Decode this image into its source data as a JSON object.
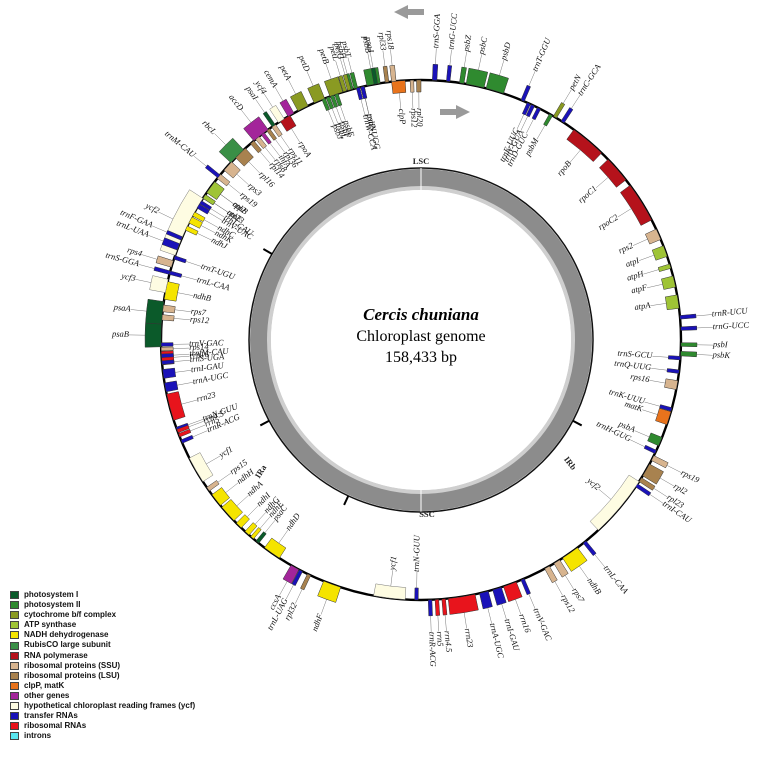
{
  "title": {
    "species": "Cercis chuniana",
    "subtitle": "Chloroplast genome",
    "size": "158,433 bp"
  },
  "regions": {
    "lsc": "LSC",
    "irb": "IRb",
    "ssc": "SSC",
    "ira": "IRa"
  },
  "colors": {
    "photosystem_i": "#0b5a2a",
    "photosystem_ii": "#2f8a2f",
    "cytochrome": "#8a9a22",
    "atp": "#9fc436",
    "ndh": "#f5e400",
    "rubisco": "#3a8f46",
    "rna_pol": "#b5121b",
    "rps": "#d7b48f",
    "rpl": "#a8824f",
    "clp": "#e8731c",
    "other": "#a3259a",
    "ycf": "#fefce2",
    "trna": "#1a12b8",
    "rrna": "#e8141c",
    "intron": "#5ae6ef"
  },
  "legend": [
    {
      "label": "photosystem I",
      "key": "photosystem_i"
    },
    {
      "label": "photosystem II",
      "key": "photosystem_ii"
    },
    {
      "label": "cytochrome b/f complex",
      "key": "cytochrome"
    },
    {
      "label": "ATP synthase",
      "key": "atp"
    },
    {
      "label": "NADH dehydrogenase",
      "key": "ndh"
    },
    {
      "label": "RubisCO large subunit",
      "key": "rubisco"
    },
    {
      "label": "RNA polymerase",
      "key": "rna_pol"
    },
    {
      "label": "ribosomal proteins (SSU)",
      "key": "rps"
    },
    {
      "label": "ribosomal proteins (LSU)",
      "key": "rpl"
    },
    {
      "label": "clpP, matK",
      "key": "clp"
    },
    {
      "label": "other genes",
      "key": "other"
    },
    {
      "label": "hypothetical chloroplast reading frames (ycf)",
      "key": "ycf"
    },
    {
      "label": "transfer RNAs",
      "key": "trna"
    },
    {
      "label": "ribosomal RNAs",
      "key": "rrna"
    },
    {
      "label": "introns",
      "key": "intron"
    }
  ],
  "genes": [
    {
      "name": "trnS-GGA",
      "a": 3,
      "w": 1,
      "t": "trna",
      "s": "out"
    },
    {
      "name": "trnG-UCC",
      "a": 6,
      "w": 0.8,
      "t": "trna",
      "s": "out"
    },
    {
      "name": "psbZ",
      "a": 9,
      "w": 1,
      "t": "photosystem_ii",
      "s": "out"
    },
    {
      "name": "psbC",
      "a": 12,
      "w": 4,
      "t": "photosystem_ii",
      "s": "out"
    },
    {
      "name": "psbD",
      "a": 16.5,
      "w": 4,
      "t": "photosystem_ii",
      "s": "out"
    },
    {
      "name": "trnT-GGU",
      "a": 23,
      "w": 0.8,
      "t": "trna",
      "s": "out"
    },
    {
      "name": "psbM",
      "a": 30,
      "w": 0.8,
      "t": "photosystem_ii",
      "s": "in"
    },
    {
      "name": "petN",
      "a": 31,
      "w": 0.8,
      "t": "cytochrome",
      "s": "out"
    },
    {
      "name": "trnD-GUC",
      "a": 27,
      "w": 0.8,
      "t": "trna",
      "s": "in"
    },
    {
      "name": "trnY-GUA",
      "a": 25.5,
      "w": 0.8,
      "t": "trna",
      "s": "in"
    },
    {
      "name": "trnE-UUC",
      "a": 24.5,
      "w": 0.8,
      "t": "trna",
      "s": "in"
    },
    {
      "name": "trnC-GCA",
      "a": 33,
      "w": 0.8,
      "t": "trna",
      "s": "out"
    },
    {
      "name": "rpoB",
      "a": 40,
      "w": 8,
      "t": "rna_pol",
      "s": "in"
    },
    {
      "name": "rpoC1",
      "a": 49,
      "w": 6,
      "t": "rna_pol",
      "s": "in"
    },
    {
      "name": "rpoC2",
      "a": 58,
      "w": 9,
      "t": "rna_pol",
      "s": "in"
    },
    {
      "name": "rps2",
      "a": 66,
      "w": 2.5,
      "t": "rps",
      "s": "in"
    },
    {
      "name": "atpI",
      "a": 70,
      "w": 2.5,
      "t": "atp",
      "s": "in"
    },
    {
      "name": "atpH",
      "a": 73.5,
      "w": 1,
      "t": "atp",
      "s": "in"
    },
    {
      "name": "atpF",
      "a": 77,
      "w": 2.5,
      "t": "atp",
      "s": "in"
    },
    {
      "name": "atpA",
      "a": 81.5,
      "w": 3,
      "t": "atp",
      "s": "in"
    },
    {
      "name": "trnR-UCU",
      "a": 85,
      "w": 0.8,
      "t": "trna",
      "s": "out"
    },
    {
      "name": "trnG-UCC",
      "a": 87.5,
      "w": 0.8,
      "t": "trna",
      "s": "out"
    },
    {
      "name": "psbI",
      "a": 91,
      "w": 0.8,
      "t": "photosystem_ii",
      "s": "out"
    },
    {
      "name": "psbK",
      "a": 93,
      "w": 1,
      "t": "photosystem_ii",
      "s": "out"
    },
    {
      "name": "trnS-GCU",
      "a": 94,
      "w": 0.8,
      "t": "trna",
      "s": "in"
    },
    {
      "name": "trnQ-UUG",
      "a": 97,
      "w": 0.8,
      "t": "trna",
      "s": "in"
    },
    {
      "name": "rps16",
      "a": 100,
      "w": 2,
      "t": "rps",
      "s": "in"
    },
    {
      "name": "trnK-UUU",
      "a": 105.5,
      "w": 0.8,
      "t": "trna",
      "s": "in"
    },
    {
      "name": "matK",
      "a": 107.5,
      "w": 3,
      "t": "clp",
      "s": "in"
    },
    {
      "name": "psbA",
      "a": 113,
      "w": 2,
      "t": "photosystem_ii",
      "s": "in"
    },
    {
      "name": "trnH-GUG",
      "a": 115.5,
      "w": 0.8,
      "t": "trna",
      "s": "in"
    },
    {
      "name": "rps19",
      "a": 117,
      "w": 1.2,
      "t": "rps",
      "s": "out"
    },
    {
      "name": "rpl2",
      "a": 120,
      "w": 3,
      "t": "rpl",
      "s": "out"
    },
    {
      "name": "rpl23",
      "a": 122.5,
      "w": 1,
      "t": "rpl",
      "s": "out"
    },
    {
      "name": "trnI-CAU",
      "a": 124,
      "w": 0.8,
      "t": "trna",
      "s": "out"
    },
    {
      "name": "ycf2",
      "a": 130,
      "w": 14,
      "t": "ycf",
      "s": "in"
    },
    {
      "name": "trnL-CAA",
      "a": 141,
      "w": 0.8,
      "t": "trna",
      "s": "out"
    },
    {
      "name": "ndhB",
      "a": 145,
      "w": 4,
      "t": "ndh",
      "s": "out"
    },
    {
      "name": "rps7",
      "a": 148.5,
      "w": 1.5,
      "t": "rps",
      "s": "out"
    },
    {
      "name": "rps12",
      "a": 151,
      "w": 1.2,
      "t": "rps",
      "s": "out"
    },
    {
      "name": "trnV-GAC",
      "a": 157,
      "w": 0.8,
      "t": "trna",
      "s": "out"
    },
    {
      "name": "rrn16",
      "a": 160,
      "w": 3,
      "t": "rrna",
      "s": "out"
    },
    {
      "name": "trnI-GAU",
      "a": 163,
      "w": 2,
      "t": "trna",
      "s": "out"
    },
    {
      "name": "trnA-UGC",
      "a": 166,
      "w": 2,
      "t": "trna",
      "s": "out"
    },
    {
      "name": "rrn23",
      "a": 171,
      "w": 6,
      "t": "rrna",
      "s": "out"
    },
    {
      "name": "rrn4.5",
      "a": 175,
      "w": 0.8,
      "t": "rrna",
      "s": "out"
    },
    {
      "name": "rrn5",
      "a": 176.5,
      "w": 0.8,
      "t": "rrna",
      "s": "out"
    },
    {
      "name": "trnR-ACG",
      "a": 178,
      "w": 0.8,
      "t": "trna",
      "s": "out"
    },
    {
      "name": "trnN-GUU",
      "a": 181,
      "w": 0.8,
      "t": "trna",
      "s": "in"
    },
    {
      "name": "ycf1",
      "a": 187,
      "w": 7,
      "t": "ycf",
      "s": "in"
    },
    {
      "name": "ndhF",
      "a": 200,
      "w": 4,
      "t": "ndh",
      "s": "out"
    },
    {
      "name": "rpl32",
      "a": 205.5,
      "w": 0.8,
      "t": "rpl",
      "s": "out"
    },
    {
      "name": "trnL-UAG",
      "a": 207.5,
      "w": 0.8,
      "t": "trna",
      "s": "out"
    },
    {
      "name": "ccsA",
      "a": 209,
      "w": 2,
      "t": "other",
      "s": "out"
    },
    {
      "name": "ndhD",
      "a": 215,
      "w": 4,
      "t": "ndh",
      "s": "in"
    },
    {
      "name": "psaC",
      "a": 219,
      "w": 0.8,
      "t": "photosystem_i",
      "s": "in"
    },
    {
      "name": "ndhE",
      "a": 220.5,
      "w": 0.8,
      "t": "ndh",
      "s": "in"
    },
    {
      "name": "ndhG",
      "a": 222,
      "w": 1.2,
      "t": "ndh",
      "s": "in"
    },
    {
      "name": "ndhI",
      "a": 224.5,
      "w": 1.5,
      "t": "ndh",
      "s": "in"
    },
    {
      "name": "ndhA",
      "a": 228,
      "w": 4,
      "t": "ndh",
      "s": "in"
    },
    {
      "name": "ndhH",
      "a": 232,
      "w": 3,
      "t": "ndh",
      "s": "in"
    },
    {
      "name": "rps15",
      "a": 235,
      "w": 1,
      "t": "rps",
      "s": "in"
    },
    {
      "name": "ycf1",
      "a": 240,
      "w": 6,
      "t": "ycf",
      "s": "in"
    },
    {
      "name": "trnN-GUU",
      "a": 250,
      "w": 0.8,
      "t": "trna",
      "s": "in"
    },
    {
      "name": "trnR-ACG",
      "a": 247,
      "w": 0.8,
      "t": "trna",
      "s": "in"
    },
    {
      "name": "rrn5",
      "a": 248.5,
      "w": 0.8,
      "t": "rrna",
      "s": "in"
    },
    {
      "name": "rrn4.5",
      "a": 249.5,
      "w": 0.8,
      "t": "rrna",
      "s": "in"
    },
    {
      "name": "rrn23",
      "a": 255,
      "w": 6,
      "t": "rrna",
      "s": "in"
    },
    {
      "name": "trnA-UGC",
      "a": 259.5,
      "w": 2,
      "t": "trna",
      "s": "in"
    },
    {
      "name": "trnI-GAU",
      "a": 262.5,
      "w": 2,
      "t": "trna",
      "s": "in"
    },
    {
      "name": "rrn16",
      "a": 266,
      "w": 3,
      "t": "rrna",
      "s": "in"
    },
    {
      "name": "trnV-GAC",
      "a": 269,
      "w": 0.8,
      "t": "trna",
      "s": "in"
    },
    {
      "name": "rps12",
      "a": 275,
      "w": 1.2,
      "t": "rps",
      "s": "in"
    },
    {
      "name": "rps7",
      "a": 277,
      "w": 1.5,
      "t": "rps",
      "s": "in"
    },
    {
      "name": "ndhB",
      "a": 281,
      "w": 4,
      "t": "ndh",
      "s": "in"
    },
    {
      "name": "trnL-CAA",
      "a": 285,
      "w": 0.8,
      "t": "trna",
      "s": "in"
    },
    {
      "name": "ycf2",
      "a": 296,
      "w": 14,
      "t": "ycf",
      "s": "out"
    },
    {
      "name": "trnI-CAU",
      "a": 302,
      "w": 0.8,
      "t": "trna",
      "s": "in"
    },
    {
      "name": "rpl23",
      "a": 303.5,
      "w": 1,
      "t": "rpl",
      "s": "in"
    },
    {
      "name": "rpl2",
      "a": 306,
      "w": 3,
      "t": "rpl",
      "s": "in"
    },
    {
      "name": "rps19",
      "a": 309,
      "w": 1.2,
      "t": "rps",
      "s": "in"
    },
    {
      "name": "rps3",
      "a": 312,
      "w": 2.5,
      "t": "rps",
      "s": "in"
    },
    {
      "name": "rpl16",
      "a": 316,
      "w": 3,
      "t": "rpl",
      "s": "in"
    },
    {
      "name": "rpl14",
      "a": 319.5,
      "w": 1,
      "t": "rpl",
      "s": "in"
    },
    {
      "name": "rps8",
      "a": 321,
      "w": 1,
      "t": "rps",
      "s": "in"
    },
    {
      "name": "infA",
      "a": 322.5,
      "w": 0.8,
      "t": "other",
      "s": "in"
    },
    {
      "name": "rpl36",
      "a": 324,
      "w": 0.8,
      "t": "rpl",
      "s": "in"
    },
    {
      "name": "rps11",
      "a": 325.5,
      "w": 1,
      "t": "rps",
      "s": "in"
    },
    {
      "name": "rpoA",
      "a": 328.5,
      "w": 2.5,
      "t": "rna_pol",
      "s": "in"
    },
    {
      "name": "petD",
      "a": 337,
      "w": 2.5,
      "t": "cytochrome",
      "s": "out"
    },
    {
      "name": "petB",
      "a": 341,
      "w": 3,
      "t": "cytochrome",
      "s": "out"
    },
    {
      "name": "psbH",
      "a": 344.5,
      "w": 0.8,
      "t": "photosystem_ii",
      "s": "out"
    },
    {
      "name": "psbT",
      "a": 345.5,
      "w": 0.8,
      "t": "photosystem_ii",
      "s": "out"
    },
    {
      "name": "psbN",
      "a": 347,
      "w": 0.8,
      "t": "photosystem_ii",
      "s": "in"
    },
    {
      "name": "psbB",
      "a": 349.5,
      "w": 3,
      "t": "photosystem_ii",
      "s": "out"
    },
    {
      "name": "clpP",
      "a": 355,
      "w": 3,
      "t": "clp",
      "s": "in"
    },
    {
      "name": "rps12",
      "a": 358,
      "w": 0.8,
      "t": "rps",
      "s": "in"
    },
    {
      "name": "rpl20",
      "a": 359.5,
      "w": 1,
      "t": "rpl",
      "s": "in"
    }
  ],
  "genes_top": [
    {
      "name": "rps18",
      "a": 6,
      "w": 1,
      "t": "rps",
      "s": "out"
    },
    {
      "name": "rpl33",
      "a": 7.5,
      "w": 0.8,
      "t": "rpl",
      "s": "out"
    },
    {
      "name": "psaJ",
      "a": 10,
      "w": 0.8,
      "t": "photosystem_i",
      "s": "out"
    },
    {
      "name": "trnP-UGG",
      "a": 13,
      "w": 0.8,
      "t": "trna",
      "s": "in"
    },
    {
      "name": "trnW-CCA",
      "a": 14,
      "w": 0.8,
      "t": "trna",
      "s": "in"
    },
    {
      "name": "petG",
      "a": 16,
      "w": 0.8,
      "t": "cytochrome",
      "s": "out"
    },
    {
      "name": "petL",
      "a": 17,
      "w": 0.8,
      "t": "cytochrome",
      "s": "out"
    },
    {
      "name": "psbE",
      "a": 19,
      "w": 0.8,
      "t": "photosystem_ii",
      "s": "in"
    },
    {
      "name": "psbF",
      "a": 20,
      "w": 0.8,
      "t": "photosystem_ii",
      "s": "in"
    },
    {
      "name": "psbL",
      "a": 21,
      "w": 0.8,
      "t": "photosystem_ii",
      "s": "in"
    },
    {
      "name": "psbJ",
      "a": 22,
      "w": 0.8,
      "t": "photosystem_ii",
      "s": "in"
    },
    {
      "name": "petA",
      "a": 27,
      "w": 2.5,
      "t": "cytochrome",
      "s": "out"
    },
    {
      "name": "cemA",
      "a": 30,
      "w": 1.5,
      "t": "other",
      "s": "out"
    },
    {
      "name": "ycf4",
      "a": 32.5,
      "w": 1.5,
      "t": "ycf",
      "s": "out"
    },
    {
      "name": "psaI",
      "a": 34.5,
      "w": 0.8,
      "t": "photosystem_i",
      "s": "out"
    },
    {
      "name": "accD",
      "a": 38,
      "w": 4,
      "t": "other",
      "s": "out"
    },
    {
      "name": "rbcL",
      "a": 45,
      "w": 4,
      "t": "rubisco",
      "s": "out"
    },
    {
      "name": "trnM-CAU",
      "a": 51,
      "w": 0.8,
      "t": "trna",
      "s": "out"
    },
    {
      "name": "atpB",
      "a": 54,
      "w": 3,
      "t": "atp",
      "s": "in"
    },
    {
      "name": "atpE",
      "a": 56.5,
      "w": 1,
      "t": "atp",
      "s": "in"
    },
    {
      "name": "trnV-UAC",
      "a": 59,
      "w": 1,
      "t": "trna",
      "s": "in"
    },
    {
      "name": "ndhC",
      "a": 61,
      "w": 1,
      "t": "ndh",
      "s": "in"
    },
    {
      "name": "ndhK",
      "a": 62.5,
      "w": 1.5,
      "t": "ndh",
      "s": "in"
    },
    {
      "name": "ndhJ",
      "a": 64.5,
      "w": 1,
      "t": "ndh",
      "s": "in"
    },
    {
      "name": "trnF-GAA",
      "a": 67,
      "w": 0.8,
      "t": "trna",
      "s": "out"
    },
    {
      "name": "trnL-UAA",
      "a": 69,
      "w": 1.5,
      "t": "trna",
      "s": "out"
    },
    {
      "name": "trnT-UGU",
      "a": 71.5,
      "w": 0.8,
      "t": "trna",
      "s": "in"
    },
    {
      "name": "rps4",
      "a": 73,
      "w": 1.5,
      "t": "rps",
      "s": "out"
    },
    {
      "name": "trnS-GGA",
      "a": 75,
      "w": 0.8,
      "t": "trna",
      "s": "out"
    },
    {
      "name": "ycf3",
      "a": 78,
      "w": 3,
      "t": "ycf",
      "s": "out"
    },
    {
      "name": "psaA",
      "a": 84,
      "w": 5,
      "t": "photosystem_i",
      "s": "out"
    },
    {
      "name": "psaB",
      "a": 89,
      "w": 5,
      "t": "photosystem_i",
      "s": "out"
    },
    {
      "name": "rps14",
      "a": 92,
      "w": 0.8,
      "t": "rps",
      "s": "in"
    },
    {
      "name": "trnfM-CAU",
      "a": 93.5,
      "w": 0.8,
      "t": "trna",
      "s": "in"
    },
    {
      "name": "trnS-UGA",
      "a": 95,
      "w": 0.8,
      "t": "trna",
      "s": "in"
    }
  ]
}
